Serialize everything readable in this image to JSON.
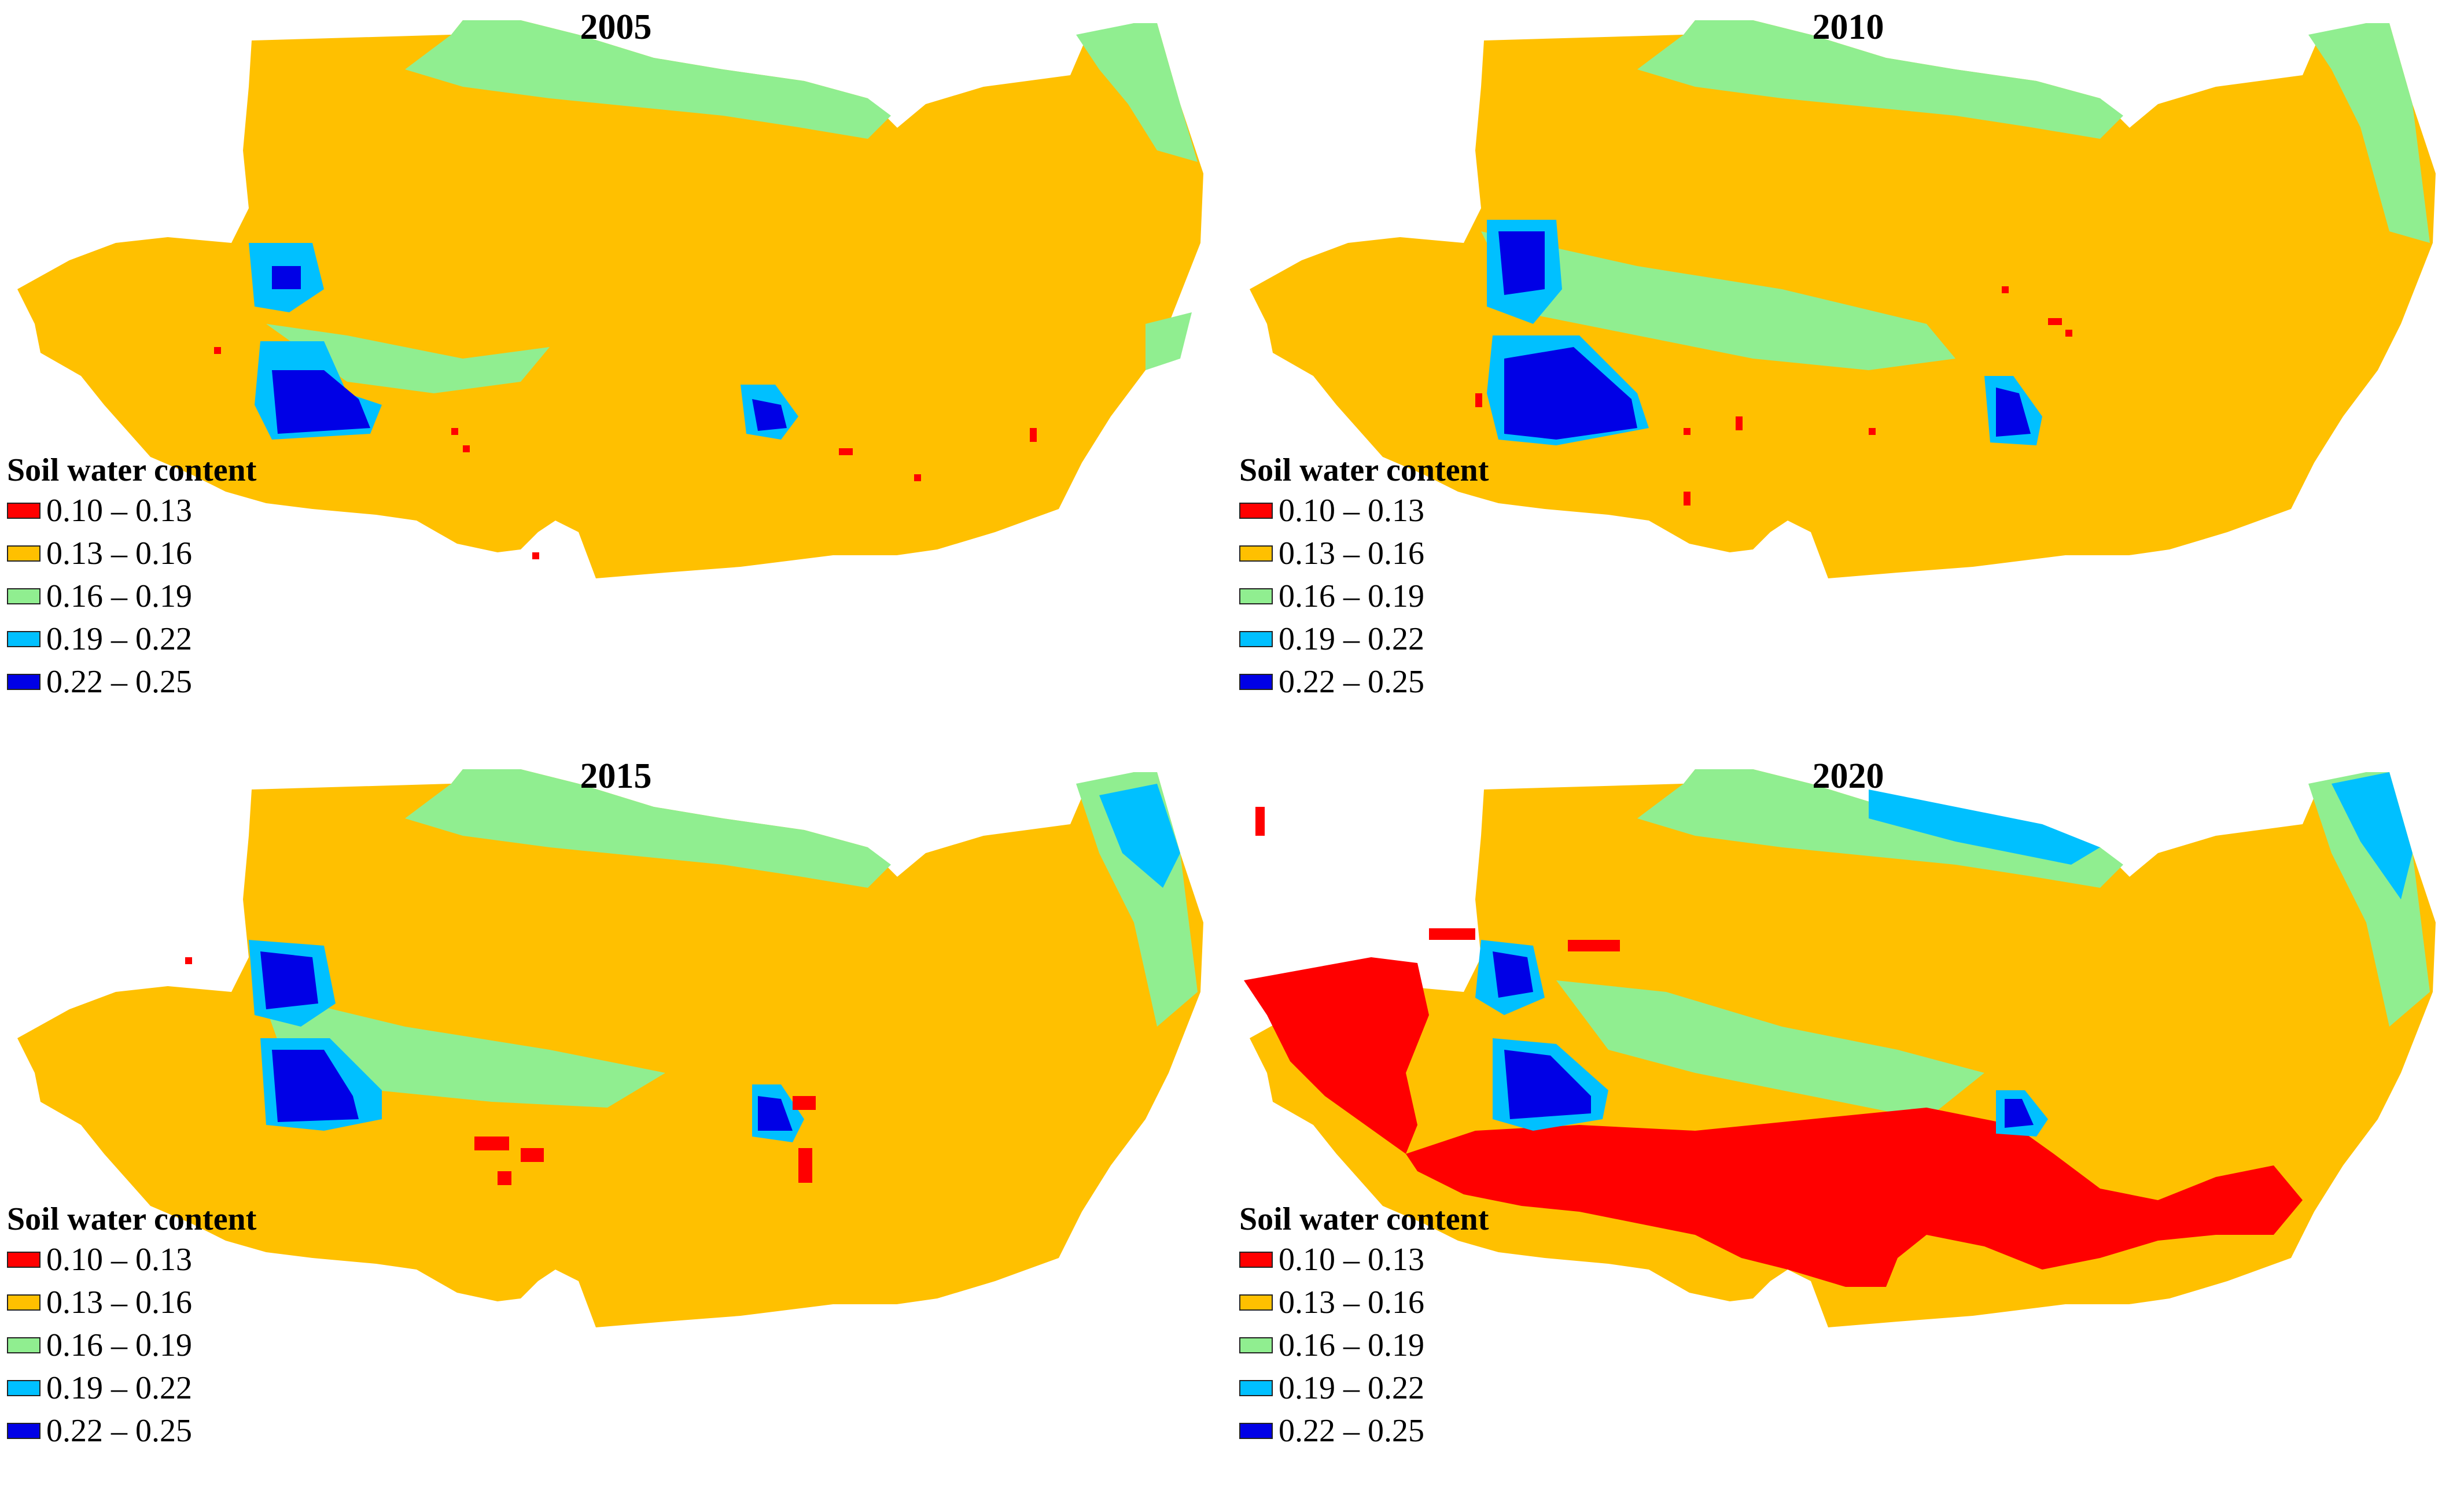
{
  "figure": {
    "panels": [
      {
        "year": "2005"
      },
      {
        "year": "2010"
      },
      {
        "year": "2015"
      },
      {
        "year": "2020"
      }
    ],
    "legend": {
      "title": "Soil water content",
      "classes": [
        {
          "label": "0.10 – 0.13",
          "color": "#ff0000"
        },
        {
          "label": "0.13 – 0.16",
          "color": "#ffc000"
        },
        {
          "label": "0.16 – 0.19",
          "color": "#90ee90"
        },
        {
          "label": "0.19 – 0.22",
          "color": "#00c0ff"
        },
        {
          "label": "0.22 – 0.25",
          "color": "#0000e6"
        }
      ]
    },
    "map_class_extents": {
      "2005": {
        "red_0.10_0.13": "scattered pixels only",
        "dominant": "0.13 – 0.16"
      },
      "2010": {
        "red_0.10_0.13": "scattered pixels only",
        "dominant": "0.13 – 0.16"
      },
      "2015": {
        "red_0.10_0.13": "small clusters in south-central area",
        "dominant": "0.13 – 0.16"
      },
      "2020": {
        "red_0.10_0.13": "large contiguous area in west and south",
        "dominant": "0.13 – 0.16"
      }
    }
  }
}
